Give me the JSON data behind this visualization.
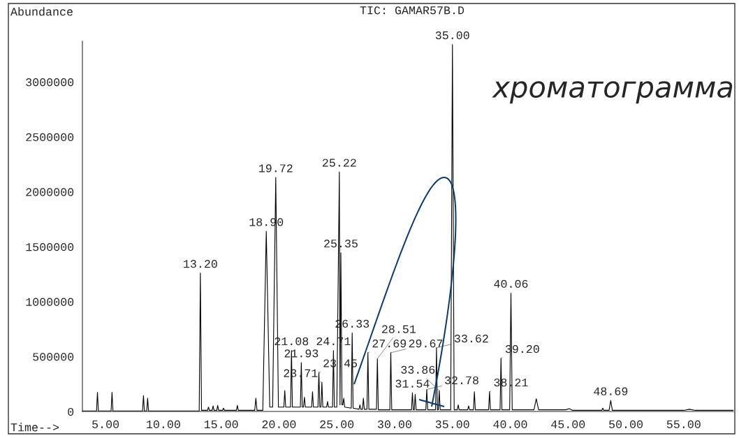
{
  "chart_data": {
    "type": "line",
    "title": "TIC: GAMAR57B.D",
    "xlabel": "Time-->",
    "ylabel": "Abundance",
    "color": "#000000",
    "marker": "none",
    "line_style": "solid",
    "grid": false,
    "x": [
      3.0,
      4.22,
      4.3,
      4.38,
      5.48,
      5.56,
      5.64,
      8.2,
      8.28,
      8.36,
      8.56,
      8.64,
      8.72,
      13.1,
      13.2,
      13.3,
      13.82,
      13.9,
      13.98,
      14.22,
      14.3,
      14.38,
      14.62,
      14.7,
      14.78,
      15.12,
      15.2,
      15.28,
      16.32,
      16.4,
      16.48,
      17.9,
      18.0,
      18.1,
      18.6,
      18.9,
      19.2,
      19.45,
      19.72,
      19.95,
      20.42,
      20.5,
      20.58,
      21.0,
      21.08,
      21.16,
      21.85,
      21.93,
      22.01,
      22.12,
      22.2,
      22.28,
      22.82,
      22.9,
      22.98,
      23.37,
      23.45,
      23.53,
      23.63,
      23.71,
      23.79,
      24.12,
      24.2,
      24.28,
      24.63,
      24.71,
      24.79,
      25.0,
      25.22,
      25.28,
      25.35,
      25.45,
      25.52,
      25.6,
      25.68,
      26.25,
      26.33,
      26.41,
      26.92,
      27.0,
      27.08,
      27.22,
      27.3,
      27.38,
      27.61,
      27.69,
      27.77,
      28.43,
      28.51,
      28.59,
      29.59,
      29.67,
      29.75,
      31.46,
      31.54,
      31.62,
      31.7,
      31.78,
      31.86,
      32.7,
      32.78,
      32.86,
      33.54,
      33.62,
      33.7,
      33.78,
      33.86,
      33.94,
      34.85,
      35.0,
      35.15,
      35.42,
      35.5,
      35.58,
      36.32,
      36.4,
      36.48,
      36.82,
      36.9,
      36.98,
      38.13,
      38.21,
      38.29,
      39.12,
      39.2,
      39.28,
      39.95,
      40.06,
      40.17,
      42.05,
      42.25,
      42.45,
      44.8,
      45.1,
      45.4,
      47.92,
      48.0,
      48.08,
      48.55,
      48.69,
      48.83,
      55.0,
      55.5,
      56.0,
      59.3
    ],
    "values": [
      5000,
      5000,
      175000,
      5000,
      5000,
      175000,
      5000,
      5000,
      145000,
      5000,
      5000,
      120000,
      5000,
      5000,
      1260000,
      10000,
      10000,
      40000,
      10000,
      10000,
      50000,
      10000,
      10000,
      55000,
      10000,
      10000,
      30000,
      10000,
      10000,
      55000,
      10000,
      10000,
      120000,
      10000,
      10000,
      1640000,
      40000,
      40000,
      2130000,
      40000,
      40000,
      190000,
      40000,
      40000,
      555000,
      40000,
      40000,
      445000,
      40000,
      40000,
      130000,
      40000,
      40000,
      180000,
      40000,
      40000,
      355000,
      40000,
      40000,
      265000,
      40000,
      40000,
      90000,
      40000,
      40000,
      555000,
      40000,
      40000,
      2180000,
      60000,
      1445000,
      60000,
      60000,
      120000,
      40000,
      30000,
      715000,
      30000,
      20000,
      60000,
      20000,
      20000,
      120000,
      20000,
      20000,
      535000,
      20000,
      20000,
      480000,
      15000,
      15000,
      535000,
      15000,
      15000,
      170000,
      15000,
      15000,
      155000,
      15000,
      15000,
      200000,
      15000,
      15000,
      580000,
      15000,
      15000,
      190000,
      15000,
      15000,
      3340000,
      15000,
      15000,
      60000,
      15000,
      15000,
      50000,
      15000,
      15000,
      180000,
      15000,
      15000,
      180000,
      15000,
      15000,
      485000,
      15000,
      15000,
      1078000,
      15000,
      15000,
      115000,
      15000,
      15000,
      25000,
      10000,
      10000,
      30000,
      10000,
      10000,
      100000,
      10000,
      10000,
      20000,
      10000,
      10000
    ],
    "xlim": [
      3.0,
      59.3
    ],
    "ylim": [
      0,
      3370000
    ],
    "xticks": [
      {
        "value": 5,
        "label": "5.00"
      },
      {
        "value": 10,
        "label": "10.00"
      },
      {
        "value": 15,
        "label": "15.00"
      },
      {
        "value": 20,
        "label": "20.00"
      },
      {
        "value": 25,
        "label": "25.00"
      },
      {
        "value": 30,
        "label": "30.00"
      },
      {
        "value": 35,
        "label": "35.00"
      },
      {
        "value": 40,
        "label": "40.00"
      },
      {
        "value": 45,
        "label": "45.00"
      },
      {
        "value": 50,
        "label": "50.00"
      },
      {
        "value": 55,
        "label": "55.00"
      }
    ],
    "yticks": [
      0,
      500000,
      1000000,
      1500000,
      2000000,
      2500000,
      3000000
    ],
    "annotations": [
      {
        "text": "13.20",
        "x": 13.2,
        "y": 1260000
      },
      {
        "text": "18.90",
        "x": 18.9,
        "y": 1640000
      },
      {
        "text": "19.72",
        "x": 19.72,
        "y": 2130000
      },
      {
        "text": "21.08",
        "x": 21.08,
        "y": 555000
      },
      {
        "text": "21.93",
        "x": 21.93,
        "y": 445000
      },
      {
        "text": "23.45",
        "x": 23.45,
        "y": 355000
      },
      {
        "text": "23.71",
        "x": 23.71,
        "y": 265000
      },
      {
        "text": "24.71",
        "x": 24.71,
        "y": 555000
      },
      {
        "text": "25.22",
        "x": 25.22,
        "y": 2180000
      },
      {
        "text": "25.35",
        "x": 25.35,
        "y": 1445000
      },
      {
        "text": "26.33",
        "x": 26.33,
        "y": 715000
      },
      {
        "text": "27.69",
        "x": 27.69,
        "y": 535000
      },
      {
        "text": "28.51",
        "x": 28.51,
        "y": 480000
      },
      {
        "text": "29.67",
        "x": 29.67,
        "y": 535000
      },
      {
        "text": "31.54",
        "x": 31.54,
        "y": 170000
      },
      {
        "text": "32.78",
        "x": 32.78,
        "y": 200000
      },
      {
        "text": "33.62",
        "x": 33.62,
        "y": 580000
      },
      {
        "text": "33.86",
        "x": 33.86,
        "y": 190000
      },
      {
        "text": "35.00",
        "x": 35.0,
        "y": 3340000
      },
      {
        "text": "38.21",
        "x": 38.21,
        "y": 180000
      },
      {
        "text": "39.20",
        "x": 39.2,
        "y": 485000
      },
      {
        "text": "40.06",
        "x": 40.06,
        "y": 1078000
      },
      {
        "text": "48.69",
        "x": 48.69,
        "y": 100000
      },
      "хроматограмма"
    ]
  }
}
